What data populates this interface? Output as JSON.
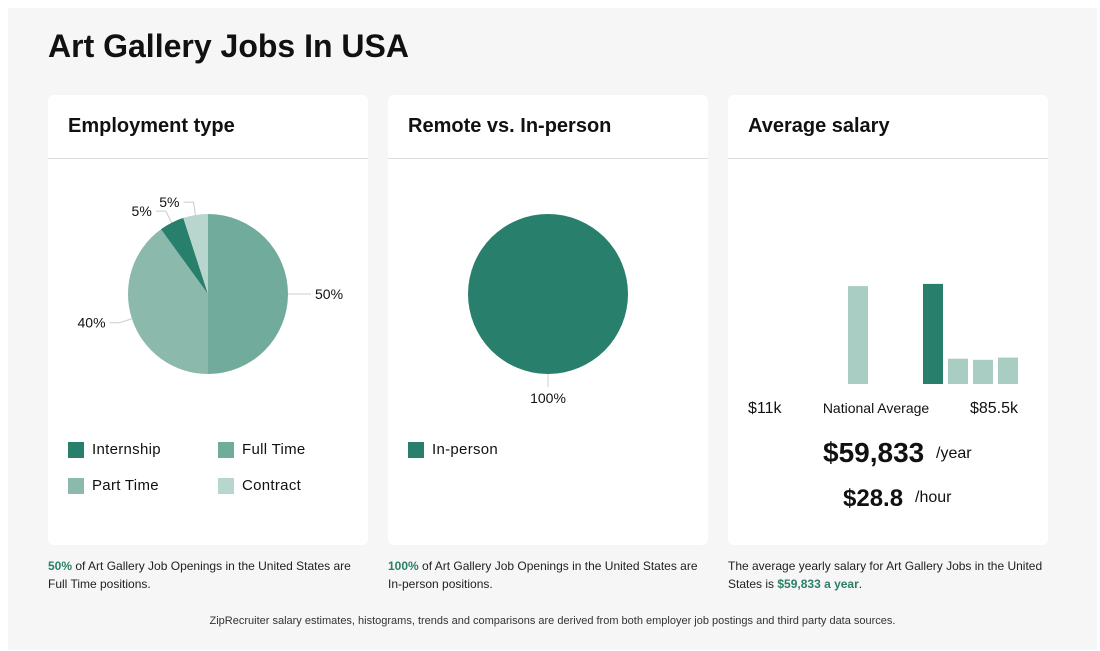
{
  "page": {
    "title": "Art Gallery Jobs In USA"
  },
  "colors": {
    "internship": "#287f6b",
    "full_time": "#71ab9b",
    "part_time": "#8bb9ab",
    "contract": "#b9d6ce",
    "in_person": "#287f6b",
    "bar_light": "#a9cdc2",
    "bar_dark": "#287f6b",
    "highlight": "#2a7f68"
  },
  "employment": {
    "title": "Employment type",
    "legend": [
      "Internship",
      "Full Time",
      "Part Time",
      "Contract"
    ],
    "caption": {
      "highlight": "50%",
      "text": " of Art Gallery Job Openings in the United States are Full Time positions."
    }
  },
  "remote": {
    "title": "Remote vs. In-person",
    "legend": [
      "In-person"
    ],
    "caption": {
      "highlight": "100%",
      "text": " of Art Gallery Job Openings in the United States are In-person positions."
    }
  },
  "salary": {
    "title": "Average salary",
    "min_label": "$11k",
    "center_label": "National Average",
    "max_label": "$85.5k",
    "yearly_amount": "$59,833",
    "yearly_unit": "/year",
    "hourly_amount": "$28.8",
    "hourly_unit": "/hour",
    "caption": {
      "text": "The average yearly salary for Art Gallery Jobs in the United States is ",
      "highlight": "$59,833 a year",
      "end": "."
    }
  },
  "footer": "ZipRecruiter salary estimates, histograms, trends and comparisons are derived from both employer job postings and third party data sources.",
  "chart_data": [
    {
      "type": "pie",
      "title": "Employment type",
      "categories": [
        "Full Time",
        "Part Time",
        "Internship",
        "Contract"
      ],
      "values": [
        50,
        40,
        5,
        5
      ],
      "labels": [
        "50%",
        "40%",
        "5%",
        "5%"
      ],
      "colors": [
        "#71ab9b",
        "#8bb9ab",
        "#287f6b",
        "#b9d6ce"
      ]
    },
    {
      "type": "pie",
      "title": "Remote vs. In-person",
      "categories": [
        "In-person"
      ],
      "values": [
        100
      ],
      "labels": [
        "100%"
      ],
      "colors": [
        "#287f6b"
      ]
    },
    {
      "type": "bar",
      "title": "Average salary",
      "values": [
        0.89,
        0,
        0,
        0.91,
        0.23,
        0.22,
        0.24
      ],
      "highlight_index": 3,
      "xlabels": [
        "$11k",
        "National Average",
        "$85.5k"
      ]
    }
  ]
}
